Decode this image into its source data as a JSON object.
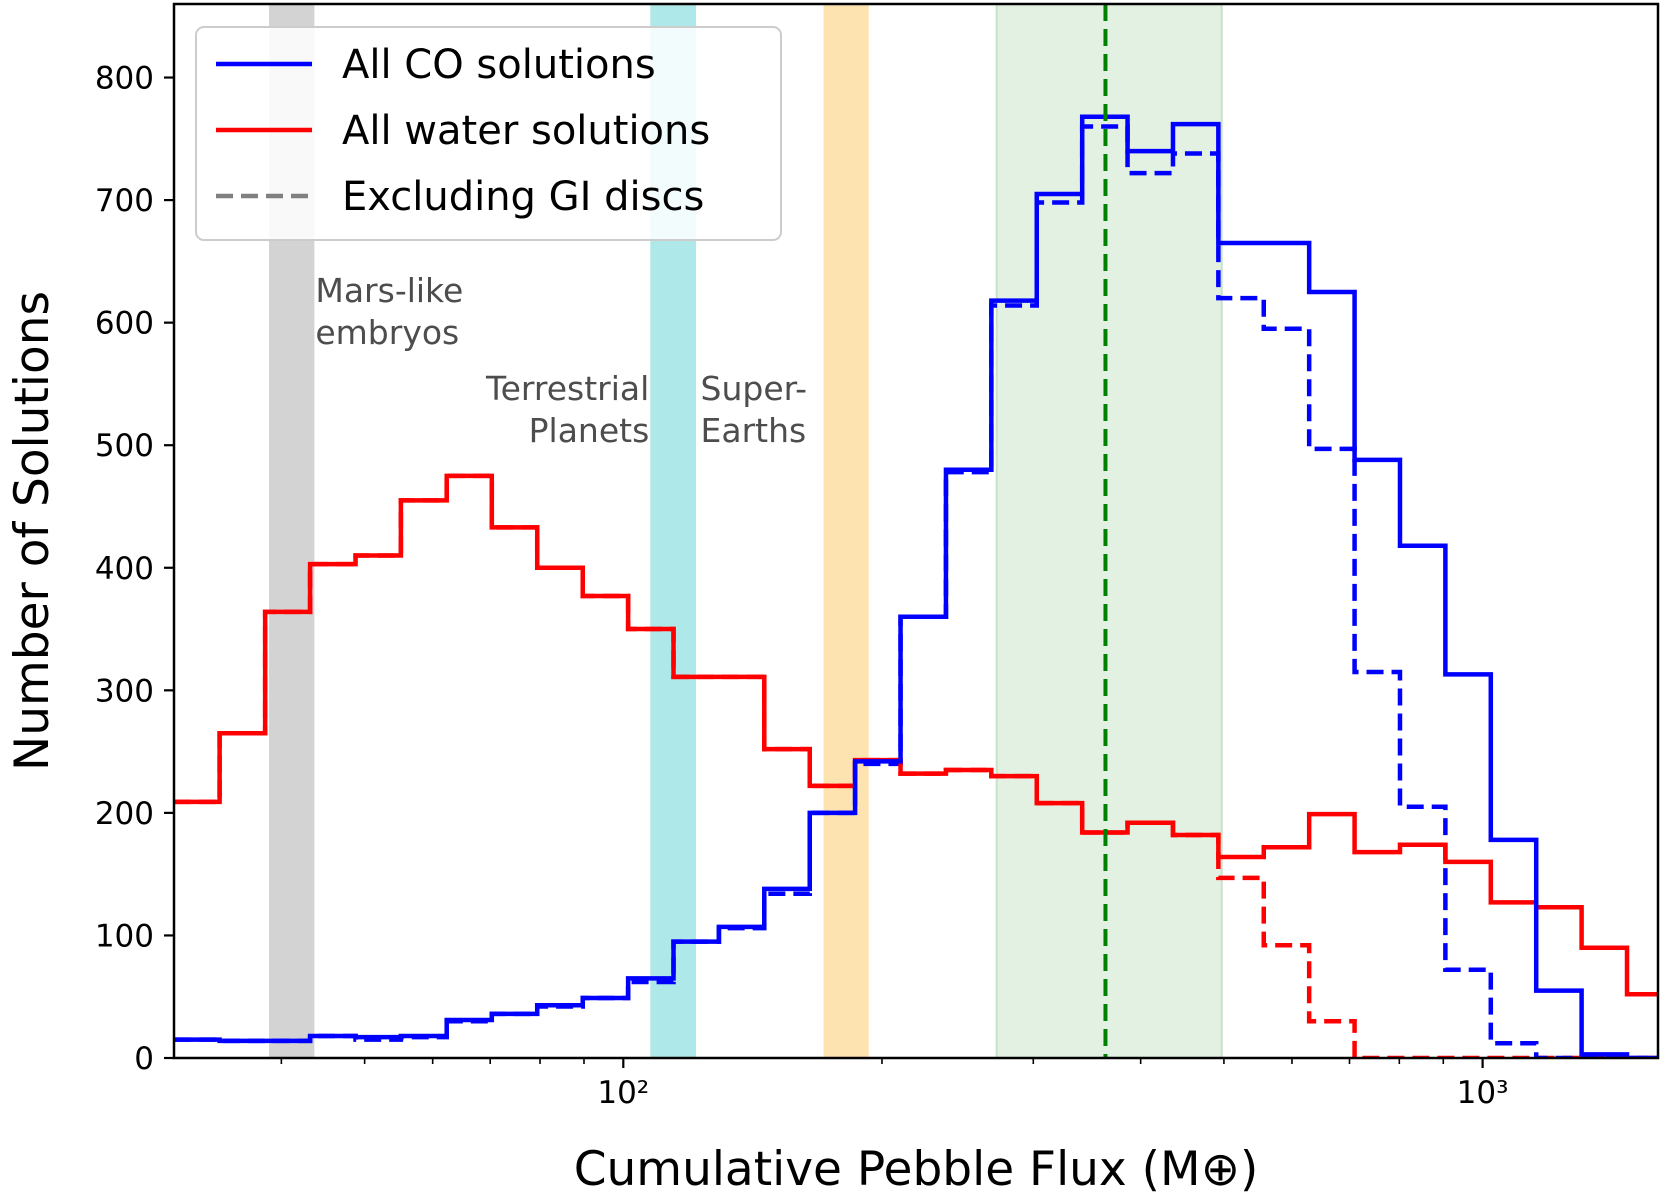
{
  "chart_data": {
    "type": "histogram-step",
    "xscale": "log",
    "xlim": [
      30,
      1600
    ],
    "ylim": [
      0,
      860
    ],
    "xlabel": "Cumulative Pebble Flux (M⊕)",
    "ylabel": "Number of Solutions",
    "xtick_labels": [
      {
        "value": 100,
        "label": "10²"
      },
      {
        "value": 1000,
        "label": "10³"
      }
    ],
    "yticks": [
      0,
      100,
      200,
      300,
      400,
      500,
      600,
      700,
      800
    ],
    "legend": {
      "location": "top-left",
      "entries": [
        {
          "label": "All CO solutions",
          "color": "#0000ff",
          "style": "solid"
        },
        {
          "label": "All water solutions",
          "color": "#ff0000",
          "style": "solid"
        },
        {
          "label": "Excluding GI discs",
          "color": "#808080",
          "style": "dashed"
        }
      ]
    },
    "bands": [
      {
        "x0": 38.7,
        "x1": 43.7,
        "color": "#d3d3d3",
        "label": "Mars-like\nembryos"
      },
      {
        "x0": 107.5,
        "x1": 121.5,
        "color": "#aee8e8",
        "label": "Terrestrial\nPlanets"
      },
      {
        "x0": 171,
        "x1": 193,
        "color": "#fde3b0",
        "label": "Super-\nEarths"
      },
      {
        "x0": 272,
        "x1": 497,
        "color": "#e3f1e3",
        "label": ""
      }
    ],
    "vline": {
      "x": 364,
      "color": "#008000",
      "style": "dashed"
    },
    "bin_edges": [
      30,
      33.9,
      38.3,
      43.2,
      48.8,
      55.1,
      62.3,
      70.3,
      79.4,
      89.7,
      101.3,
      114.4,
      129.2,
      145.9,
      164.8,
      186.1,
      210.2,
      237.4,
      268.1,
      302.8,
      342.0,
      386.2,
      436.2,
      492.6,
      556.3,
      628.3,
      709.6,
      801.4,
      905.1,
      1022.2,
      1154.5,
      1303.8,
      1472.5,
      1600
    ],
    "series": [
      {
        "name": "All CO solutions",
        "color": "#0000ff",
        "style": "solid",
        "values": [
          15,
          14,
          14,
          18,
          17,
          18,
          31,
          36,
          43,
          49,
          65,
          95,
          107,
          138,
          200,
          242,
          360,
          480,
          618,
          705,
          768,
          740,
          762,
          665,
          665,
          625,
          488,
          418,
          313,
          178,
          55,
          3,
          0
        ]
      },
      {
        "name": "CO excluding GI discs",
        "color": "#0000ff",
        "style": "dashed",
        "values": [
          15,
          14,
          14,
          18,
          15,
          17,
          30,
          36,
          42,
          49,
          62,
          95,
          106,
          134,
          200,
          240,
          360,
          478,
          614,
          698,
          760,
          722,
          738,
          620,
          595,
          497,
          315,
          205,
          72,
          12,
          0,
          0,
          0
        ]
      },
      {
        "name": "All water solutions",
        "color": "#ff0000",
        "style": "solid",
        "values": [
          209,
          265,
          364,
          403,
          410,
          455,
          475,
          433,
          400,
          377,
          350,
          311,
          311,
          252,
          222,
          243,
          232,
          235,
          230,
          208,
          184,
          192,
          182,
          164,
          172,
          199,
          168,
          174,
          160,
          127,
          123,
          90,
          52
        ]
      },
      {
        "name": "Water excluding GI discs",
        "color": "#ff0000",
        "style": "dashed",
        "values": [
          209,
          265,
          364,
          403,
          410,
          455,
          475,
          433,
          400,
          377,
          350,
          311,
          311,
          252,
          222,
          243,
          232,
          235,
          230,
          208,
          184,
          192,
          182,
          147,
          92,
          30,
          0,
          0,
          0,
          0,
          0,
          0,
          0
        ]
      }
    ]
  }
}
